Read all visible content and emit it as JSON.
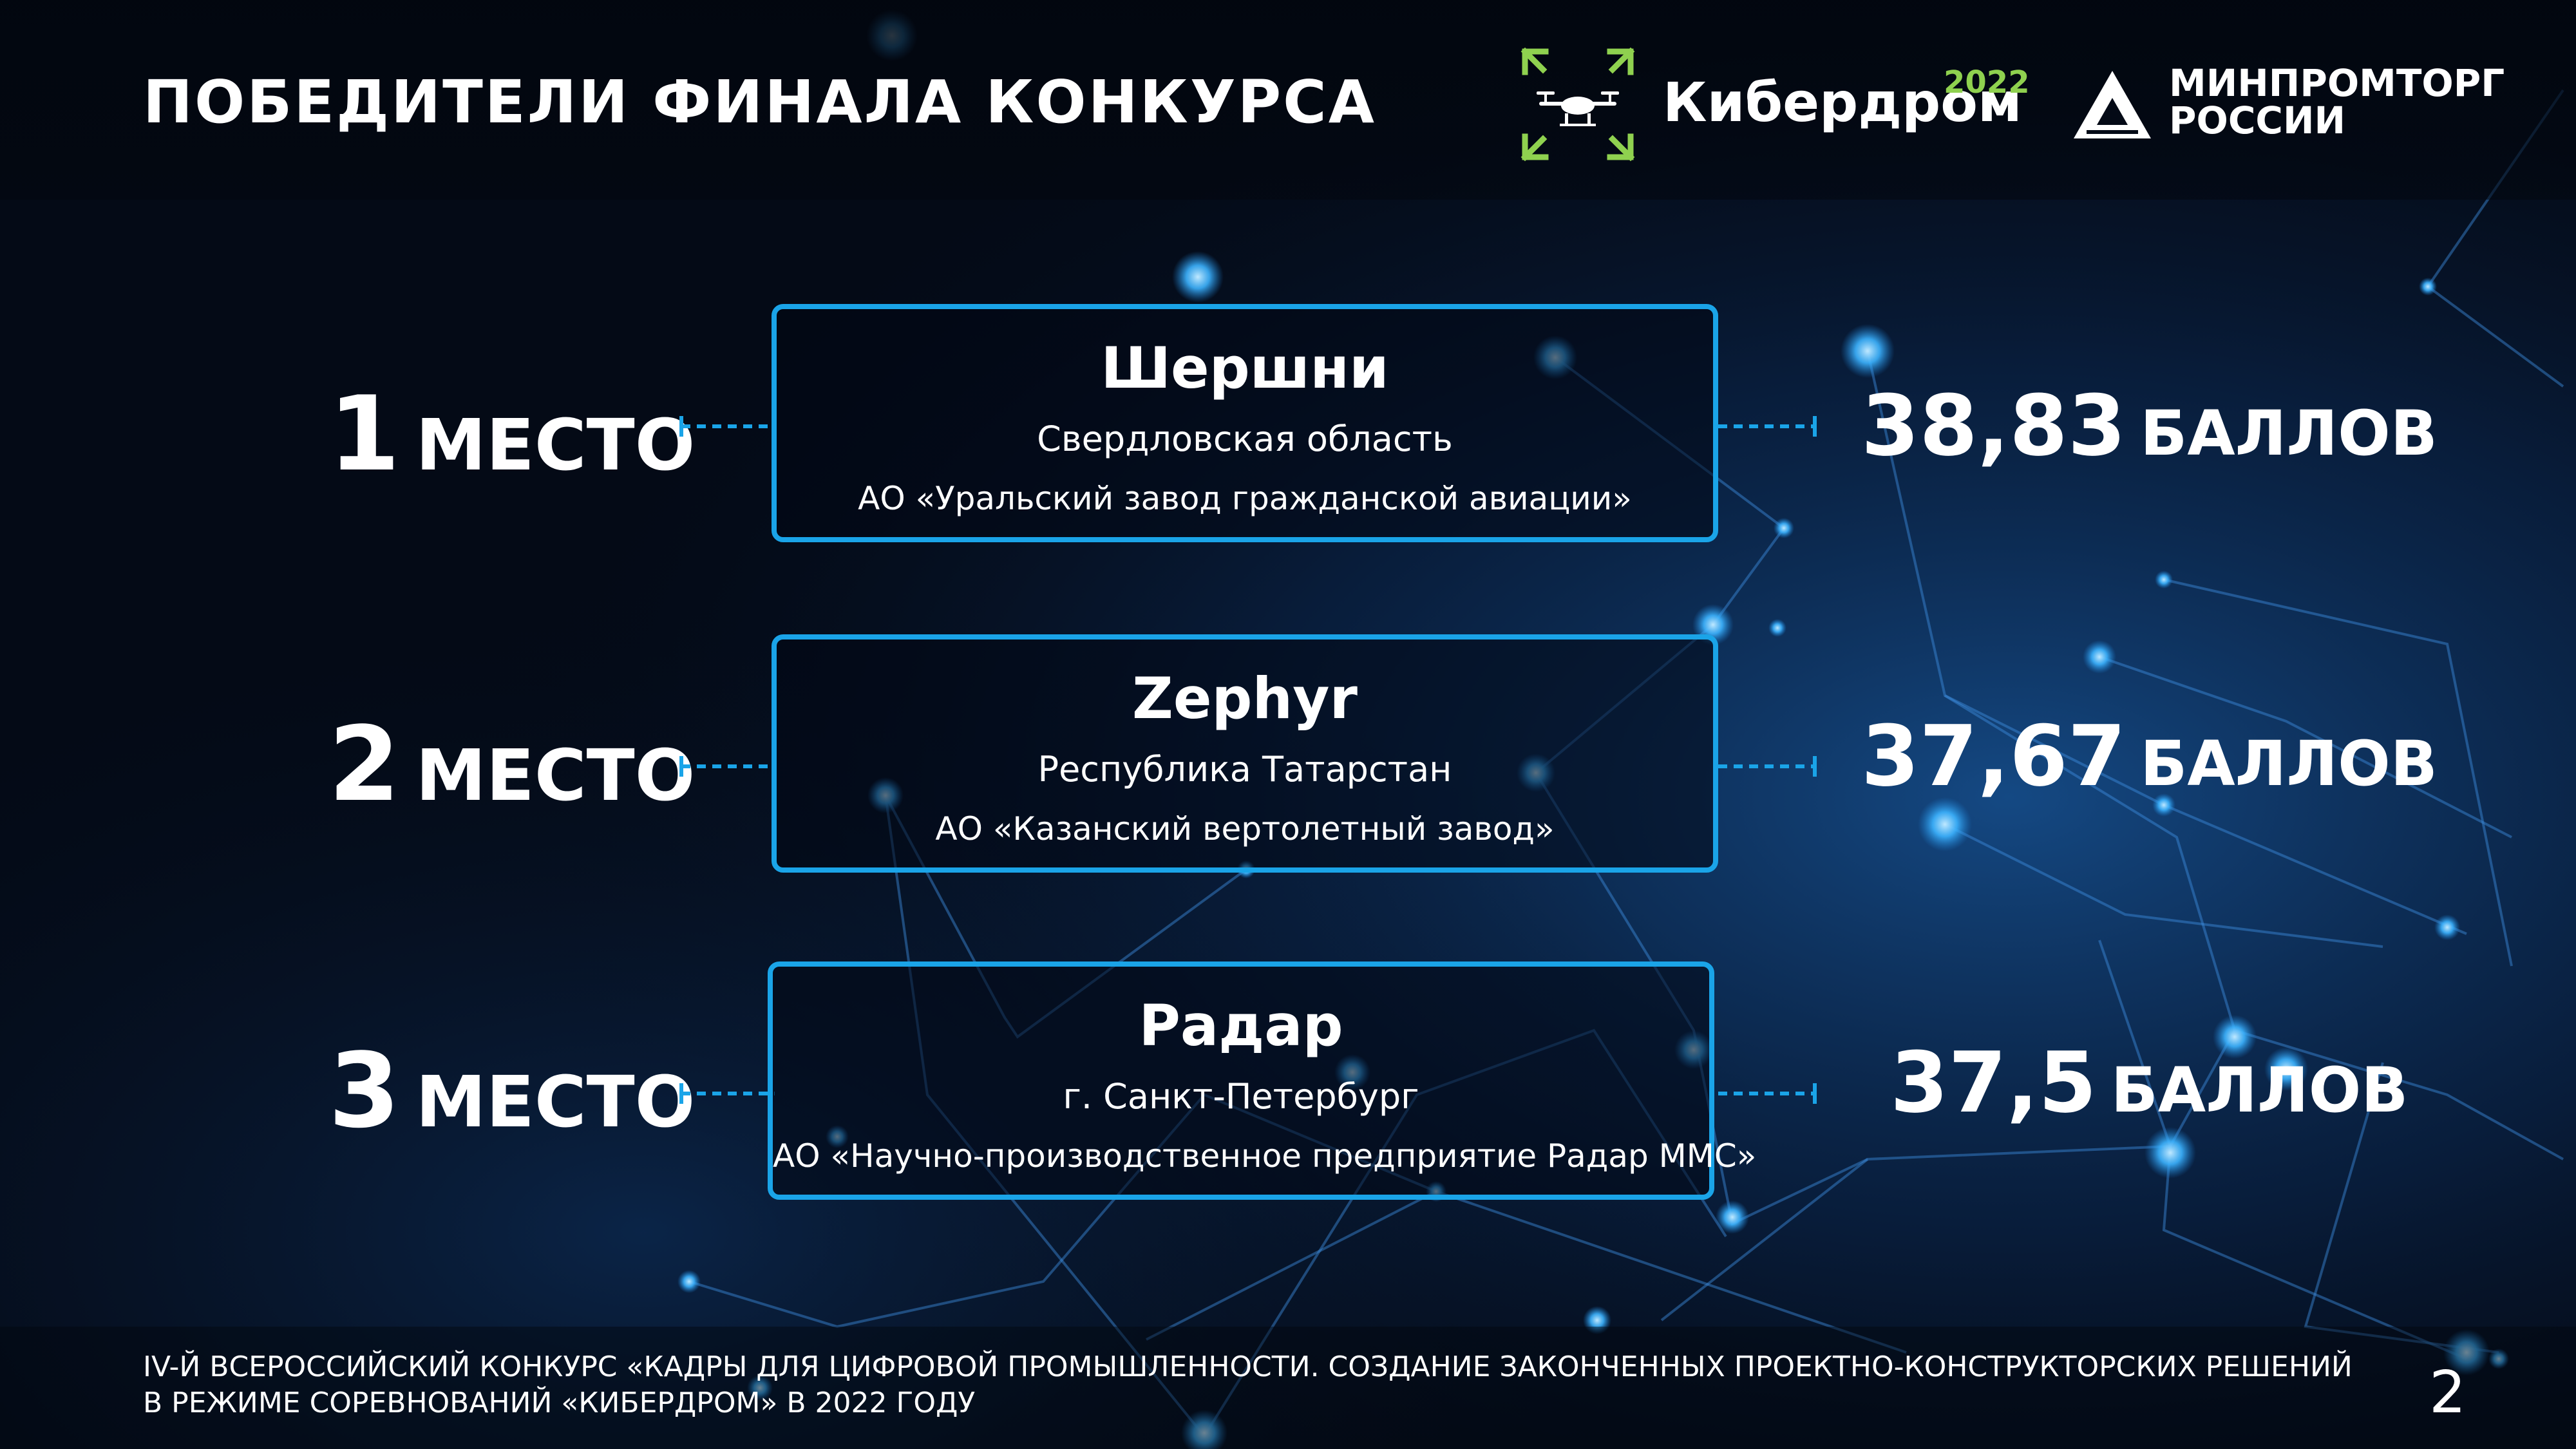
{
  "header": {
    "title": "ПОБЕДИТЕЛИ ФИНАЛА КОНКУРСА",
    "logo_kiberdrom": {
      "name": "Кибердром",
      "year": "2022",
      "icon": "drone-icon"
    },
    "logo_minpromtorg": {
      "line1": "МИНПРОМТОРГ",
      "line2": "РОССИИ",
      "icon": "minpromtorg-emblem-icon"
    }
  },
  "winners": [
    {
      "place_number": "1",
      "place_word": "МЕСТО",
      "team": "Шершни",
      "region": "Свердловская область",
      "organization": "АО «Уральский завод гражданской авиации»",
      "score_value": "38,83",
      "score_unit": "БАЛЛОВ"
    },
    {
      "place_number": "2",
      "place_word": "МЕСТО",
      "team": "Zephyr",
      "region": "Республика Татарстан",
      "organization": "АО «Казанский вертолетный завод»",
      "score_value": "37,67",
      "score_unit": "БАЛЛОВ"
    },
    {
      "place_number": "3",
      "place_word": "МЕСТО",
      "team": "Радар",
      "region": "г. Санкт-Петербург",
      "organization": "АО «Научно-производственное предприятие Радар ММС»",
      "score_value": "37,5",
      "score_unit": "БАЛЛОВ"
    }
  ],
  "footer": {
    "line1": "IV-Й ВСЕРОССИЙСКИЙ КОНКУРС «КАДРЫ ДЛЯ ЦИФРОВОЙ ПРОМЫШЛЕННОСТИ. СОЗДАНИЕ ЗАКОНЧЕННЫХ ПРОЕКТНО-КОНСТРУКТОРСКИХ РЕШЕНИЙ",
    "line2": "В РЕЖИМЕ СОРЕВНОВАНИЙ «КИБЕРДРОМ» В 2022 ГОДУ",
    "page_number": "2"
  },
  "colors": {
    "accent_blue": "#1aa4e8",
    "brand_green": "#8fd14f",
    "background": "#040a16"
  }
}
